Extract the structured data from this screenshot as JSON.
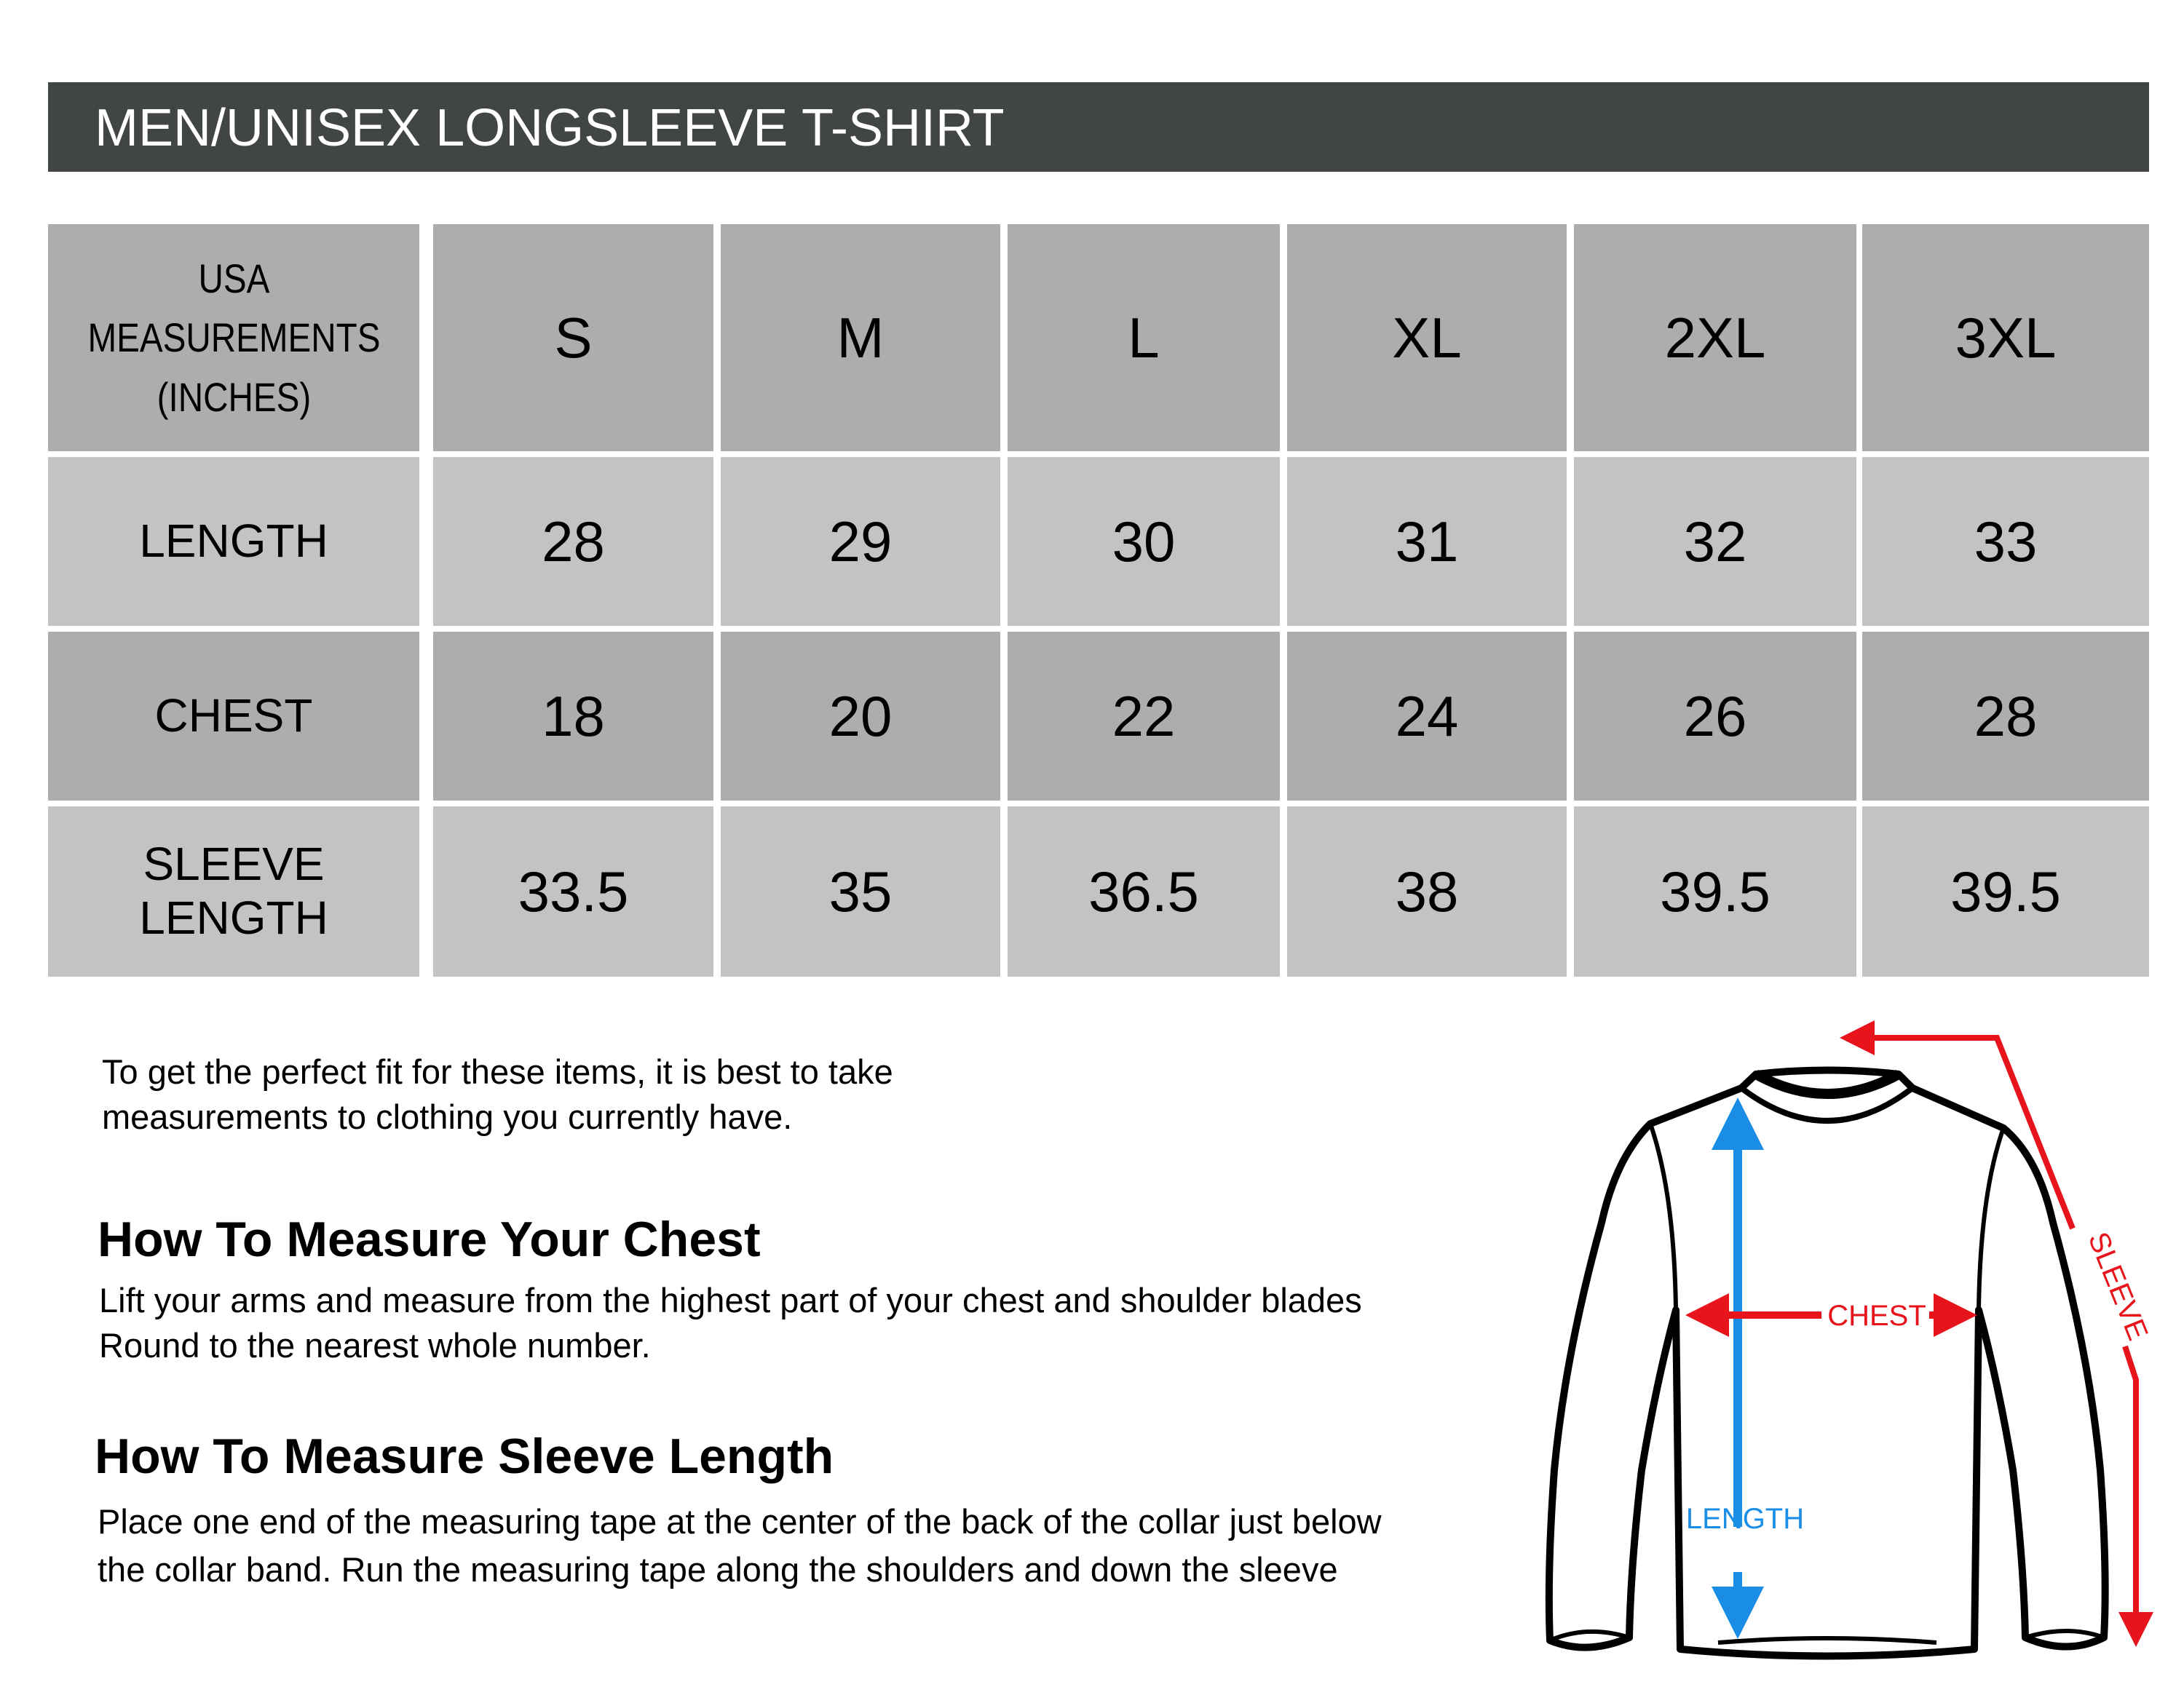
{
  "title": "MEN/UNISEX LONGSLEEVE T-SHIRT",
  "table": {
    "corner_label": [
      "USA",
      "MEASUREMENTS",
      "(INCHES)"
    ],
    "sizes": [
      "S",
      "M",
      "L",
      "XL",
      "2XL",
      "3XL"
    ],
    "rows": [
      {
        "label": [
          "LENGTH"
        ],
        "values": [
          "28",
          "29",
          "30",
          "31",
          "32",
          "33"
        ]
      },
      {
        "label": [
          "CHEST"
        ],
        "values": [
          "18",
          "20",
          "22",
          "24",
          "26",
          "28"
        ]
      },
      {
        "label": [
          "SLEEVE",
          "LENGTH"
        ],
        "values": [
          "33.5",
          "35",
          "36.5",
          "38",
          "39.5",
          "39.5"
        ]
      }
    ]
  },
  "intro": [
    "To get the perfect fit for these items, it is best to take",
    "measurements to clothing you currently have."
  ],
  "chest_section": {
    "heading": "How To Measure Your Chest",
    "body": [
      "Lift your arms and measure from the highest part of your chest and shoulder blades",
      "Round to the nearest whole number."
    ]
  },
  "sleeve_section": {
    "heading": "How To Measure Sleeve Length",
    "body": [
      "Place one end of the measuring tape at the center of the back of the collar just below",
      "the collar band. Run the measuring tape along the shoulders and down the sleeve"
    ]
  },
  "diagram": {
    "chest_label": "CHEST",
    "length_label": "LENGTH",
    "sleeve_label": "SLEEVE",
    "colors": {
      "chest": "#e8141b",
      "sleeve": "#e8141b",
      "length": "#1a8ee6",
      "header_bar": "#414546",
      "row_dark": "#adadad",
      "row_light": "#c4c3c4"
    }
  }
}
